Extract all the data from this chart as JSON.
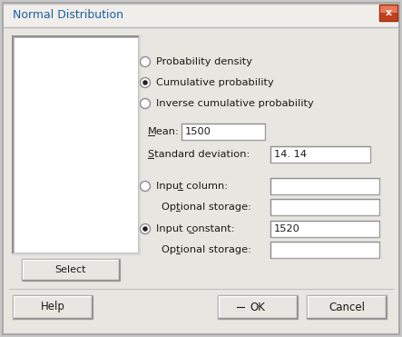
{
  "title": "Normal Distribution",
  "outer_bg": "#c8c8c8",
  "dialog_bg": "#e8e6e0",
  "panel_bg": "#e8e6e0",
  "white": "#ffffff",
  "title_text_color": "#1a5fa8",
  "text_color": "#1a1a1a",
  "close_btn_color_top": "#e07050",
  "close_btn_color_bot": "#b03010",
  "radio_options": [
    "Probability density",
    "Cumulative probability",
    "Inverse cumulative probability"
  ],
  "radio_selected": 1,
  "mean_label": "Mean:",
  "mean_value": "1500",
  "std_label": "Standard deviation:",
  "std_value": "14. 14",
  "input_col_label": "Input column:",
  "opt_storage1": "Optional storage:",
  "input_const_label": "Input constant:",
  "input_const_value": "1520",
  "opt_storage2": "Optional storage:",
  "select_btn": "Select",
  "help_btn": "Help",
  "ok_btn": "OK",
  "cancel_btn": "Cancel",
  "figw": 4.43,
  "figh": 3.71,
  "dpi": 100
}
